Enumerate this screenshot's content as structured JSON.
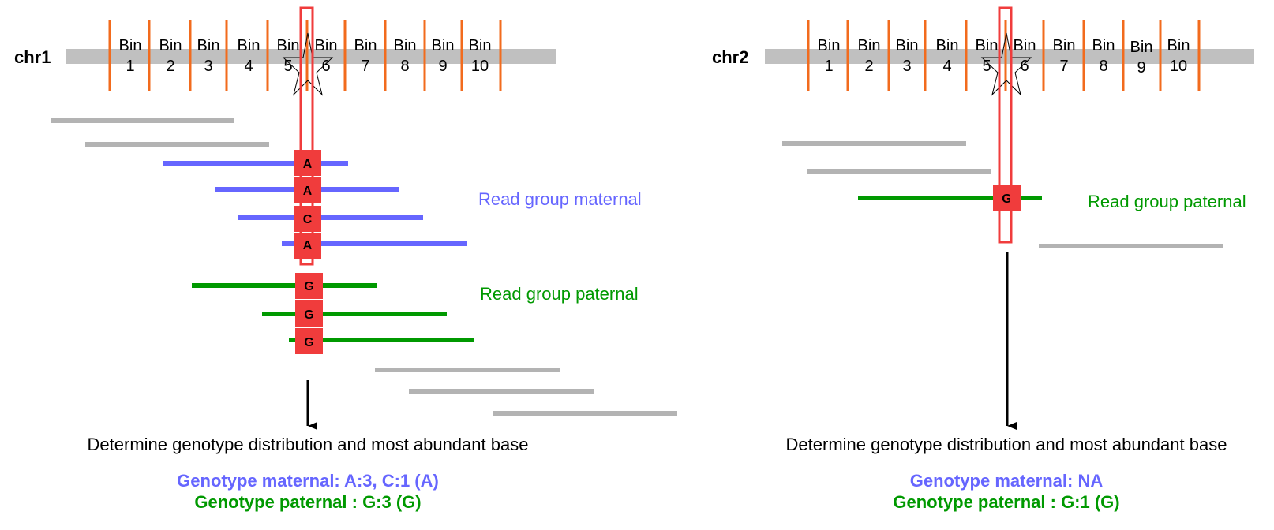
{
  "colors": {
    "maternal": "#6666ff",
    "paternal": "#009900",
    "other_read": "#b3b3b3",
    "chromosome_bar": "#c0c0c0",
    "bin_line": "#f26b1d",
    "highlight": "#f03c3c",
    "arrow": "#000000"
  },
  "panels": [
    {
      "chrom": "chr1",
      "bin_word": "Bin",
      "bins": [
        "1",
        "2",
        "3",
        "4",
        "5",
        "6",
        "7",
        "8",
        "9",
        "10"
      ],
      "maternal_label": "Read group maternal",
      "paternal_label": "Read group paternal",
      "maternal_bases": [
        "A",
        "A",
        "C",
        "A"
      ],
      "paternal_bases": [
        "G",
        "G",
        "G"
      ],
      "determine_text": "Determine genotype distribution and most abundant base",
      "genotype_maternal": "Genotype maternal: A:3, C:1 (A)",
      "genotype_paternal": "Genotype paternal : G:3 (G)"
    },
    {
      "chrom": "chr2",
      "bin_word": "Bin",
      "bins": [
        "1",
        "2",
        "3",
        "4",
        "5",
        "6",
        "7",
        "8",
        "9",
        "10"
      ],
      "maternal_label": "",
      "paternal_label": "Read group paternal",
      "maternal_bases": [],
      "paternal_bases": [
        "G"
      ],
      "determine_text": "Determine genotype distribution and most abundant base",
      "genotype_maternal": "Genotype maternal: NA",
      "genotype_paternal": "Genotype paternal : G:1 (G)"
    }
  ]
}
